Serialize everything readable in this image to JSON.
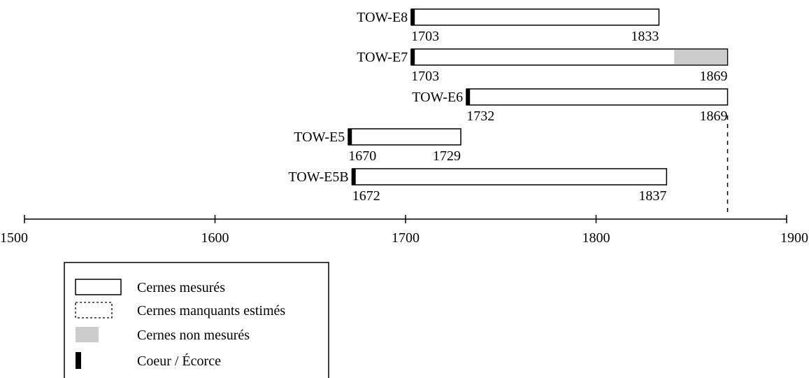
{
  "chart_data": {
    "type": "timeline",
    "title": "",
    "xlabel": "",
    "ylabel": "",
    "xlim": [
      1500,
      1900
    ],
    "x_ticks": [
      1500,
      1600,
      1700,
      1800,
      1900
    ],
    "grid": false,
    "legend_placement": "bottom-left",
    "colors": {
      "measured_fill": "#ffffff",
      "unmeasured_fill": "#cccccc",
      "pith_bark": "#000000",
      "stroke": "#000000"
    },
    "series": [
      {
        "label": "TOW-E8",
        "start": 1703,
        "end": 1833,
        "start_label": "1703",
        "end_label": "1833",
        "pith": true,
        "unmeasured_from": null
      },
      {
        "label": "TOW-E7",
        "start": 1703,
        "end": 1869,
        "start_label": "1703",
        "end_label": "1869",
        "pith": true,
        "unmeasured_from": 1841
      },
      {
        "label": "TOW-E6",
        "start": 1732,
        "end": 1869,
        "start_label": "1732",
        "end_label": "1869",
        "pith": true,
        "unmeasured_from": null
      },
      {
        "label": "TOW-E5",
        "start": 1670,
        "end": 1729,
        "start_label": "1670",
        "end_label": "1729",
        "pith": true,
        "unmeasured_from": null
      },
      {
        "label": "TOW-E5B",
        "start": 1672,
        "end": 1837,
        "start_label": "1672",
        "end_label": "1837",
        "pith": true,
        "unmeasured_from": null
      }
    ],
    "reference_line": {
      "x": 1869,
      "style": "dashed"
    },
    "legend": [
      {
        "key": "measured",
        "label": "Cernes mesurés"
      },
      {
        "key": "missing",
        "label": "Cernes manquants estimés"
      },
      {
        "key": "unmeasured",
        "label": "Cernes non mesurés"
      },
      {
        "key": "pith",
        "label": "Coeur / Écorce"
      }
    ]
  }
}
